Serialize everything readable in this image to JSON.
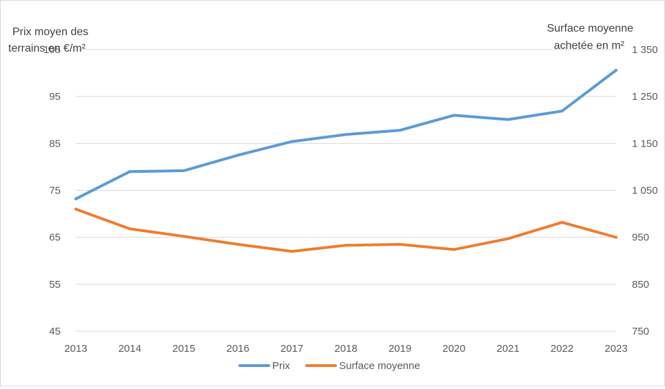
{
  "chart_data": {
    "type": "line",
    "x": [
      "2013",
      "2014",
      "2015",
      "2016",
      "2017",
      "2018",
      "2019",
      "2020",
      "2021",
      "2022",
      "2023"
    ],
    "y_left": {
      "label_line1": "Prix moyen des",
      "label_line2": "terrains en €/m²",
      "ylim": [
        45,
        105
      ],
      "ticks": [
        "45",
        "55",
        "65",
        "75",
        "85",
        "95",
        "105"
      ]
    },
    "y_right": {
      "label_line1": "Surface moyenne",
      "label_line2": "achetée en m²",
      "ylim": [
        750,
        1350
      ],
      "ticks": [
        "750",
        "850",
        "950",
        "1 050",
        "1 150",
        "1 250",
        "1 350"
      ]
    },
    "grid": true,
    "legend_position": "bottom",
    "series": [
      {
        "name": "Prix",
        "axis": "left",
        "color": "#5B9BD5",
        "values": [
          73.2,
          79.0,
          79.2,
          82.5,
          85.4,
          86.9,
          87.8,
          91.0,
          90.1,
          91.9,
          100.6
        ]
      },
      {
        "name": "Surface moyenne",
        "axis": "right",
        "color": "#ED7D31",
        "values": [
          1010,
          968,
          952,
          935,
          920,
          933,
          935,
          924,
          947,
          982,
          950
        ]
      }
    ]
  }
}
